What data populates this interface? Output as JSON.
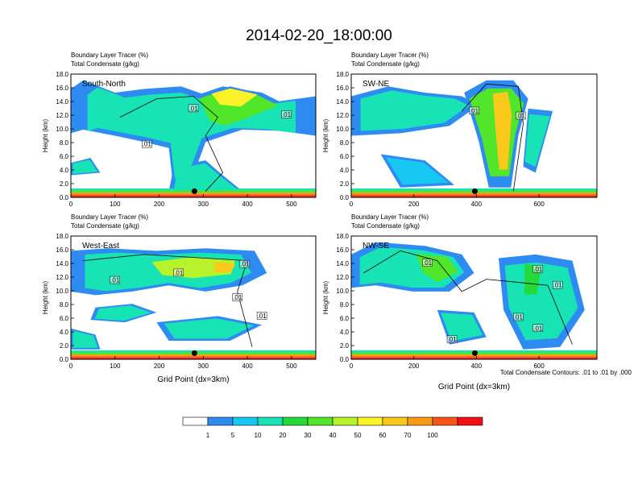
{
  "page_title": "2014-02-20_18:00:00",
  "colors": {
    "scale": [
      "#ffffff",
      "#2e8bf2",
      "#19c8f2",
      "#18e3b4",
      "#24da3a",
      "#52e62a",
      "#b8f22a",
      "#fbf227",
      "#fbc81c",
      "#f99a16",
      "#f5541a",
      "#f30f14"
    ],
    "contour": "#000000"
  },
  "colorbar": {
    "labels": [
      "1",
      "5",
      "10",
      "20",
      "30",
      "40",
      "50",
      "60",
      "70",
      "100"
    ]
  },
  "footer_note": "Total Condensate Contours: .01 to .01 by .000",
  "chart_data": [
    {
      "type": "heatmap",
      "panel_label": "South-North",
      "title_line1": "Boundary Layer Tracer   (%)",
      "title_line2": "Total Condensate   (g/kg)",
      "ylabel": "Height (km)",
      "xlabel": "",
      "xlim": [
        0,
        555
      ],
      "ylim": [
        0,
        18
      ],
      "xticks": [
        0,
        100,
        200,
        300,
        400,
        500
      ],
      "yticks": [
        "0.0",
        "2.0",
        "4.0",
        "6.0",
        "8.0",
        "10.0",
        "12.0",
        "14.0",
        "16.0",
        "18.0"
      ],
      "contour_labels": [
        ".01",
        ".01",
        ".01"
      ],
      "marker_x": 280
    },
    {
      "type": "heatmap",
      "panel_label": "SW-NE",
      "title_line1": "Boundary Layer Tracer   (%)",
      "title_line2": "Total Condensate   (g/kg)",
      "ylabel": "Height (km)",
      "xlabel": "",
      "xlim": [
        0,
        785
      ],
      "ylim": [
        0,
        18
      ],
      "xticks": [
        0,
        200,
        400,
        600
      ],
      "yticks": [
        "0.0",
        "2.0",
        "4.0",
        "6.0",
        "8.0",
        "10.0",
        "12.0",
        "14.0",
        "16.0",
        "18.0"
      ],
      "contour_labels": [
        ".01",
        ".01"
      ],
      "marker_x": 395
    },
    {
      "type": "heatmap",
      "panel_label": "West-East",
      "title_line1": "Boundary Layer Tracer   (%)",
      "title_line2": "Total Condensate   (g/kg)",
      "ylabel": "Height (km)",
      "xlabel": "Grid Point (dx=3km)",
      "xlim": [
        0,
        555
      ],
      "ylim": [
        0,
        18
      ],
      "xticks": [
        0,
        100,
        200,
        300,
        400,
        500
      ],
      "yticks": [
        "0.0",
        "2.0",
        "4.0",
        "6.0",
        "8.0",
        "10.0",
        "12.0",
        "14.0",
        "16.0",
        "18.0"
      ],
      "contour_labels": [
        ".01",
        ".01",
        ".01",
        ".01",
        ".01"
      ],
      "marker_x": 280
    },
    {
      "type": "heatmap",
      "panel_label": "NW-SE",
      "title_line1": "Boundary Layer Tracer   (%)",
      "title_line2": "Total Condensate   (g/kg)",
      "ylabel": "Height (km)",
      "xlabel": "Grid Point (dx=3km)",
      "xlim": [
        0,
        785
      ],
      "ylim": [
        0,
        18
      ],
      "xticks": [
        0,
        200,
        400,
        600
      ],
      "yticks": [
        "0.0",
        "2.0",
        "4.0",
        "6.0",
        "8.0",
        "10.0",
        "12.0",
        "14.0",
        "16.0",
        "18.0"
      ],
      "contour_labels": [
        ".01",
        ".01",
        ".01",
        ".01",
        ".01",
        ".01"
      ],
      "marker_x": 395
    }
  ]
}
